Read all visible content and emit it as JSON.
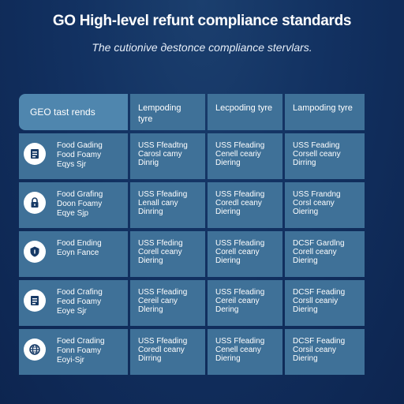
{
  "title": "GO High-level refunt compliance standards",
  "subtitle": "The cutionive дestonce compliance stervlars.",
  "table": {
    "headers": [
      "GEO tast rends",
      "Lempoding tyre",
      "Lecpoding tyre",
      "Lampoding tyre"
    ],
    "rows": [
      {
        "icon": "document-icon",
        "category": [
          "Food Gading",
          "Food Foamy",
          "Eqys Sjr"
        ],
        "cells": [
          [
            "USS Ffeadtng",
            "Carosl camy",
            "Dinrig"
          ],
          [
            "USS Ffeading",
            "Cenell ceariy",
            "Diering"
          ],
          [
            "USS Feading",
            "Corsell ceany",
            "Dirring"
          ]
        ]
      },
      {
        "icon": "lock-icon",
        "category": [
          "Food Grafing",
          "Doon Foamy",
          "Eqye Sjp"
        ],
        "cells": [
          [
            "USS Ffeading",
            "Lenall cany",
            "Dinring"
          ],
          [
            "USS Ffeading",
            "Coredl ceany",
            "Diering"
          ],
          [
            "USS Frandng",
            "Corsl ceany",
            "Oiering"
          ]
        ]
      },
      {
        "icon": "shield-icon",
        "category": [
          "Food Ending",
          "Eoyn Fance"
        ],
        "cells": [
          [
            "USS Ffeding",
            "Corell ceany",
            "Diering"
          ],
          [
            "USS Ffeading",
            "Corell ceany",
            "Diering"
          ],
          [
            "DCSF Gardlng",
            "Corell ceany",
            "Diering"
          ]
        ]
      },
      {
        "icon": "document-icon",
        "category": [
          "Food Crafing",
          "Feod Foamy",
          "Eoye Sjr"
        ],
        "cells": [
          [
            "USS Ffeading",
            "Cereil cany",
            "Dlering"
          ],
          [
            "USS Ffeading",
            "Cereil ceany",
            "Dering"
          ],
          [
            "DCSF Feading",
            "Corsll ceaniy",
            "Diering"
          ]
        ]
      },
      {
        "icon": "globe-icon",
        "category": [
          "Foed Crading",
          "Fonn Foamy",
          "Eoyi-Sjr"
        ],
        "cells": [
          [
            "USS Ffeading",
            "Coredl ceany",
            "Dirring"
          ],
          [
            "USS Ffeading",
            "Cenell ceany",
            "Diering"
          ],
          [
            "DCSF Feading",
            "Corsil ceany",
            "Diering"
          ]
        ]
      }
    ]
  },
  "colors": {
    "background": "#123161",
    "cell": "#3f7198",
    "header_first": "#4f86ae",
    "icon_bg": "#ffffff",
    "icon_fg": "#173a66"
  }
}
